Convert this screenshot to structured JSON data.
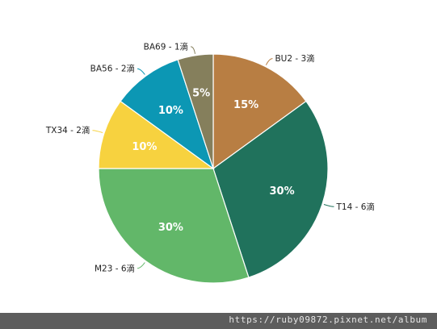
{
  "chart_data": {
    "type": "pie",
    "title": "",
    "series": [
      {
        "name": "",
        "values": [
          {
            "label": "BU2 - 3滴",
            "value": 15,
            "percent_label": "15%",
            "color": "#b87e43"
          },
          {
            "label": "T14 - 6滴",
            "value": 30,
            "percent_label": "30%",
            "color": "#20725c"
          },
          {
            "label": "M23 - 6滴",
            "value": 30,
            "percent_label": "30%",
            "color": "#62b769"
          },
          {
            "label": "TX34 - 2滴",
            "value": 10,
            "percent_label": "10%",
            "color": "#f7d23f"
          },
          {
            "label": "BA56 - 2滴",
            "value": 10,
            "percent_label": "10%",
            "color": "#0c97b4"
          },
          {
            "label": "BA69 - 1滴",
            "value": 5,
            "percent_label": "5%",
            "color": "#857f5c"
          }
        ]
      }
    ],
    "legend": "none",
    "start_angle": "12 o'clock",
    "direction": "clockwise"
  },
  "watermark": {
    "text": "https://ruby09872.pixnet.net/album",
    "bar_color": "#5d5d5d"
  }
}
